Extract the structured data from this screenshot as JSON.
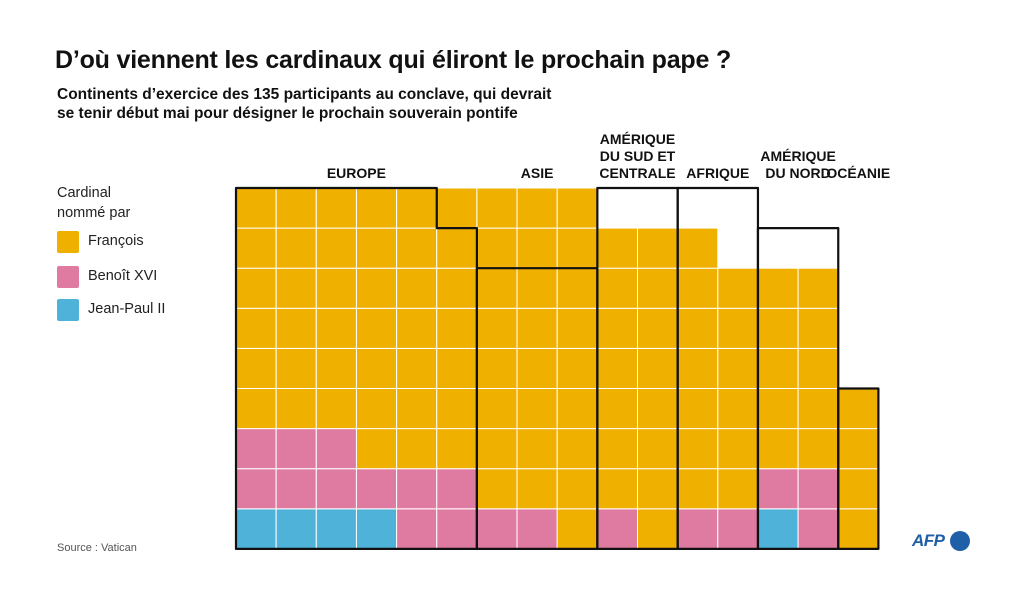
{
  "title": "D’où viennent les cardinaux qui éliront le prochain pape ?",
  "subtitle_lines": [
    "Continents d’exercice des 135 participants au conclave, qui devrait",
    "se tenir début mai pour désigner le prochain souverain pontife"
  ],
  "legend": {
    "title_lines": [
      "Cardinal",
      "nommé par"
    ],
    "items": [
      {
        "label": "François",
        "color": "#f0b000"
      },
      {
        "label": "Benoît XVI",
        "color": "#df7ba0"
      },
      {
        "label": "Jean-Paul II",
        "color": "#4fb3d9"
      }
    ]
  },
  "source": "Source : Vatican",
  "logo_text": "AFP",
  "chart_data": {
    "type": "waffle",
    "total": 135,
    "rows": 9,
    "categories": [
      {
        "name": "EUROPE",
        "label_lines": [
          "EUROPE"
        ],
        "counts": {
          "François": 38,
          "Benoît XVI": 11,
          "Jean-Paul II": 4
        }
      },
      {
        "name": "ASIE",
        "label_lines": [
          "ASIE"
        ],
        "counts": {
          "François": 19,
          "Benoît XVI": 2,
          "Jean-Paul II": 0
        }
      },
      {
        "name": "AMÉRIQUE DU SUD ET CENTRALE",
        "label_lines": [
          "AMÉRIQUE",
          "DU SUD ET",
          "CENTRALE"
        ],
        "counts": {
          "François": 17,
          "Benoît XVI": 1,
          "Jean-Paul II": 0
        }
      },
      {
        "name": "AFRIQUE",
        "label_lines": [
          "AFRIQUE"
        ],
        "counts": {
          "François": 16,
          "Benoît XVI": 2,
          "Jean-Paul II": 0
        }
      },
      {
        "name": "AMÉRIQUE DU NORD",
        "label_lines": [
          "AMÉRIQUE",
          "DU NORD"
        ],
        "counts": {
          "François": 12,
          "Benoît XVI": 3,
          "Jean-Paul II": 1
        }
      },
      {
        "name": "OCÉANIE",
        "label_lines": [
          "OCÉANIE"
        ],
        "counts": {
          "François": 4,
          "Benoît XVI": 0,
          "Jean-Paul II": 0
        }
      }
    ]
  }
}
